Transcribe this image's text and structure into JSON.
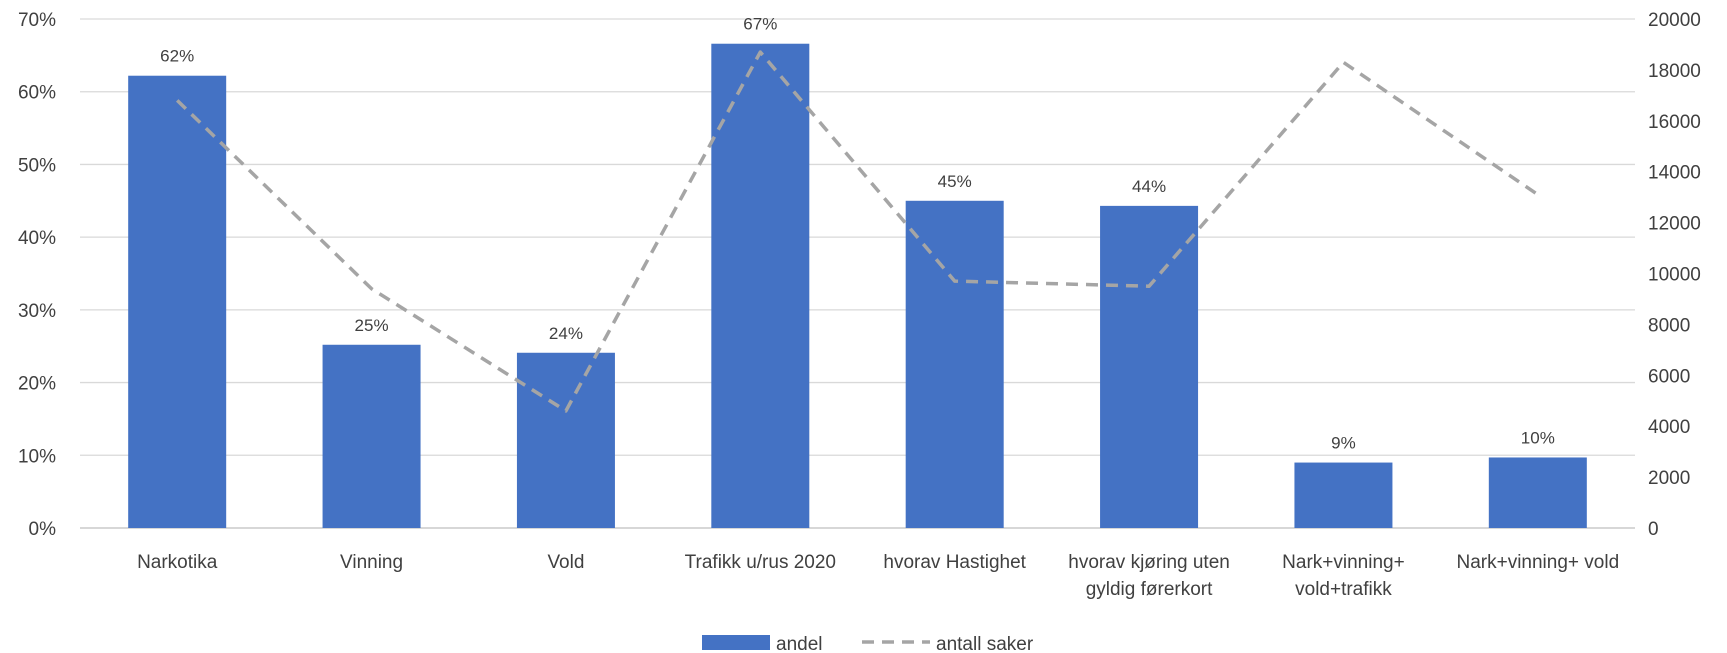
{
  "chart_data": {
    "type": "bar",
    "categories": [
      [
        "Narkotika"
      ],
      [
        "Vinning"
      ],
      [
        "Vold"
      ],
      [
        "Trafikk u/rus 2020"
      ],
      [
        "hvorav Hastighet"
      ],
      [
        "hvorav kjøring uten",
        "gyldig førerkort"
      ],
      [
        "Nark+vinning+",
        "vold+trafikk"
      ],
      [
        "Nark+vinning+ vold"
      ]
    ],
    "series": [
      {
        "name": "andel",
        "type": "bar",
        "axis": "left",
        "color": "#4472C4",
        "values": [
          0.62,
          0.25,
          0.24,
          0.67,
          0.45,
          0.44,
          0.09,
          0.1
        ],
        "plot_values": [
          0.622,
          0.252,
          0.241,
          0.666,
          0.45,
          0.443,
          0.09,
          0.097
        ],
        "data_labels": [
          "62%",
          "25%",
          "24%",
          "67%",
          "45%",
          "44%",
          "9%",
          "10%"
        ]
      },
      {
        "name": "antall saker",
        "type": "line",
        "style": "dashed",
        "axis": "right",
        "color": "#A5A5A5",
        "values": [
          16800,
          9400,
          4600,
          18700,
          9700,
          9500,
          18300,
          13100
        ]
      }
    ],
    "y_left": {
      "min": 0,
      "max": 0.7,
      "ticks": [
        0,
        0.1,
        0.2,
        0.3,
        0.4,
        0.5,
        0.6,
        0.7
      ],
      "tick_labels": [
        "0%",
        "10%",
        "20%",
        "30%",
        "40%",
        "50%",
        "60%",
        "70%"
      ]
    },
    "y_right": {
      "min": 0,
      "max": 20000,
      "ticks": [
        0,
        2000,
        4000,
        6000,
        8000,
        10000,
        12000,
        14000,
        16000,
        18000,
        20000
      ],
      "tick_labels": [
        "0",
        "2000",
        "4000",
        "6000",
        "8000",
        "10000",
        "12000",
        "14000",
        "16000",
        "18000",
        "20000"
      ]
    },
    "grid": true,
    "legend": {
      "position": "bottom",
      "items": [
        "andel",
        "antall saker"
      ]
    }
  }
}
